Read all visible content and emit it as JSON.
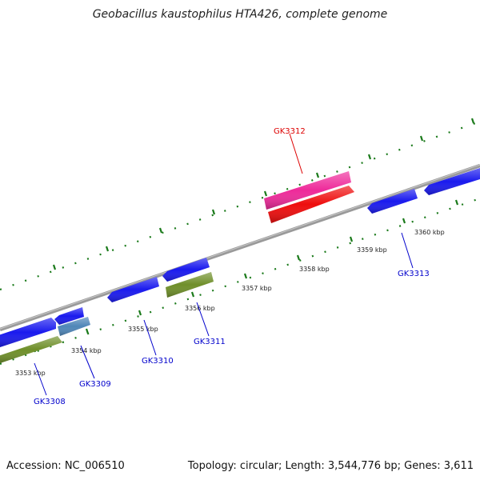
{
  "title": "Geobacillus kaustophilus HTA426, complete genome",
  "footer": {
    "accession": "Accession: NC_006510",
    "summary": "Topology: circular; Length: 3,544,776 bp; Genes: 3,611"
  },
  "colors": {
    "backbone": "#8a8a8a",
    "ticks": "#1a7a1a",
    "gene_label": "#0000cc",
    "highlight_label": "#dd0000",
    "cds_blue": "#1a1aee",
    "cds_olive": "#6f8f2a",
    "cds_steel": "#4f86b8",
    "cds_pink": "#ee2a9a",
    "cds_red": "#ee0d0d"
  },
  "kbp_labels": [
    "3353 kbp",
    "3354 kbp",
    "3355 kbp",
    "3356 kbp",
    "3357 kbp",
    "3358 kbp",
    "3359 kbp",
    "3360 kbp"
  ],
  "genes": [
    "GK3308",
    "GK3309",
    "GK3310",
    "GK3311",
    "GK3312",
    "GK3313"
  ]
}
